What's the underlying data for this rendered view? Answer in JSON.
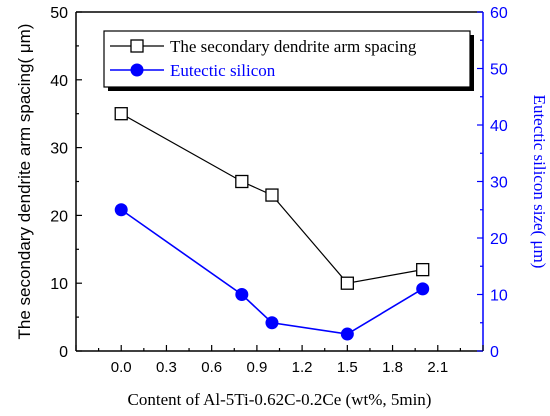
{
  "chart_data": {
    "type": "line",
    "xlabel": "Content of Al-5Ti-0.62C-0.2Ce (wt%, 5min)",
    "ylabel_left": "The secondary dendrite arm spacing( μm)",
    "ylabel_right": "Eutectic silicon size( μm)",
    "x_ticks": [
      "0.0",
      "0.3",
      "0.6",
      "0.9",
      "1.2",
      "1.5",
      "1.8",
      "2.1"
    ],
    "y_left_ticks": [
      "0",
      "10",
      "20",
      "30",
      "40",
      "50"
    ],
    "y_right_ticks": [
      "0",
      "10",
      "20",
      "30",
      "40",
      "50",
      "60"
    ],
    "xlim": [
      -0.3,
      2.4
    ],
    "ylim_left": [
      0,
      50
    ],
    "ylim_right": [
      0,
      60
    ],
    "legend_position": "top-right",
    "series": [
      {
        "name": "The secondary dendrite arm spacing",
        "axis": "left",
        "marker": "open-square",
        "color": "#000000",
        "x": [
          0.0,
          0.8,
          1.0,
          1.5,
          2.0
        ],
        "y": [
          35,
          25,
          23,
          10,
          12
        ]
      },
      {
        "name": "Eutectic silicon",
        "axis": "right",
        "marker": "filled-circle",
        "color": "#0000ff",
        "x": [
          0.0,
          0.8,
          1.0,
          1.5,
          2.0
        ],
        "y": [
          25,
          10,
          5,
          3,
          11
        ]
      }
    ]
  }
}
